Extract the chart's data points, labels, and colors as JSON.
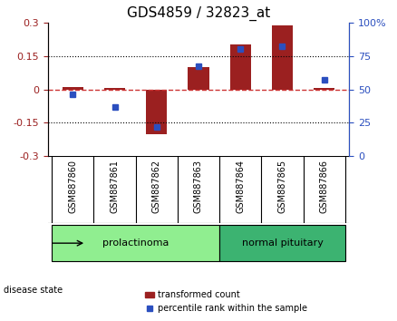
{
  "title": "GDS4859 / 32823_at",
  "samples": [
    "GSM887860",
    "GSM887861",
    "GSM887862",
    "GSM887863",
    "GSM887864",
    "GSM887865",
    "GSM887866"
  ],
  "transformed_count": [
    0.01,
    0.005,
    -0.2,
    0.1,
    0.2,
    0.285,
    0.005
  ],
  "percentile_rank": [
    46,
    37,
    22,
    67,
    80,
    82,
    57
  ],
  "ylim_left": [
    -0.3,
    0.3
  ],
  "ylim_right": [
    0,
    100
  ],
  "yticks_left": [
    -0.3,
    -0.15,
    0,
    0.15,
    0.3
  ],
  "yticks_right": [
    0,
    25,
    50,
    75,
    100
  ],
  "ytick_labels_left": [
    "-0.3",
    "-0.15",
    "0",
    "0.15",
    "0.3"
  ],
  "ytick_labels_right": [
    "0",
    "25",
    "50",
    "75",
    "100%"
  ],
  "bar_color": "#9B2020",
  "dot_color": "#2B4FBF",
  "zero_line_color": "#CC3333",
  "grid_color": "#000000",
  "groups": [
    {
      "label": "prolactinoma",
      "indices": [
        0,
        1,
        2,
        3
      ],
      "color": "#90EE90"
    },
    {
      "label": "normal pituitary",
      "indices": [
        4,
        5,
        6
      ],
      "color": "#3CB371"
    }
  ],
  "legend_bar_label": "transformed count",
  "legend_dot_label": "percentile rank within the sample",
  "disease_state_label": "disease state",
  "bar_width": 0.5,
  "background_plot": "#FFFFFF",
  "background_ticks": "#E0E0E0"
}
